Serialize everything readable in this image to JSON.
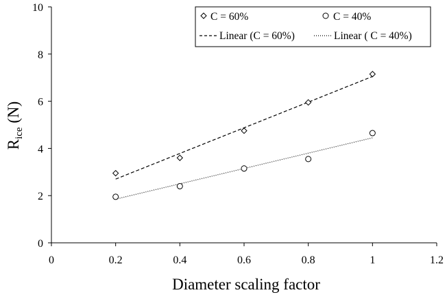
{
  "chart_data": {
    "type": "scatter",
    "xlabel": "Diameter scaling factor",
    "ylabel_main": "R",
    "ylabel_sub": "ice",
    "ylabel_unit": " (N)",
    "xlim": [
      0,
      1.2
    ],
    "ylim": [
      0,
      10
    ],
    "x_ticks": [
      0,
      0.2,
      0.4,
      0.6,
      0.8,
      1,
      1.2
    ],
    "x_tick_labels": [
      "0",
      "0.2",
      "0.4",
      "0.6",
      "0.8",
      "1",
      "1.2"
    ],
    "y_ticks": [
      0,
      2,
      4,
      6,
      8,
      10
    ],
    "y_tick_labels": [
      "0",
      "2",
      "4",
      "6",
      "8",
      "10"
    ],
    "grid": false,
    "legend_placement": "top-right",
    "series": [
      {
        "name": "C = 60%",
        "marker": "diamond",
        "x": [
          0.2,
          0.4,
          0.6,
          0.8,
          1.0
        ],
        "y": [
          2.95,
          3.6,
          4.75,
          5.95,
          7.15
        ],
        "trendline": {
          "name": "Linear (C = 60%)",
          "style": "dashed",
          "y_start": 2.7,
          "y_end": 7.05
        }
      },
      {
        "name": "C = 40%",
        "marker": "circle",
        "x": [
          0.2,
          0.4,
          0.6,
          0.8,
          1.0
        ],
        "y": [
          1.95,
          2.4,
          3.15,
          3.55,
          4.65
        ],
        "trendline": {
          "name": "Linear ( C = 40%)",
          "style": "dotted",
          "y_start": 1.85,
          "y_end": 4.45
        }
      }
    ]
  }
}
